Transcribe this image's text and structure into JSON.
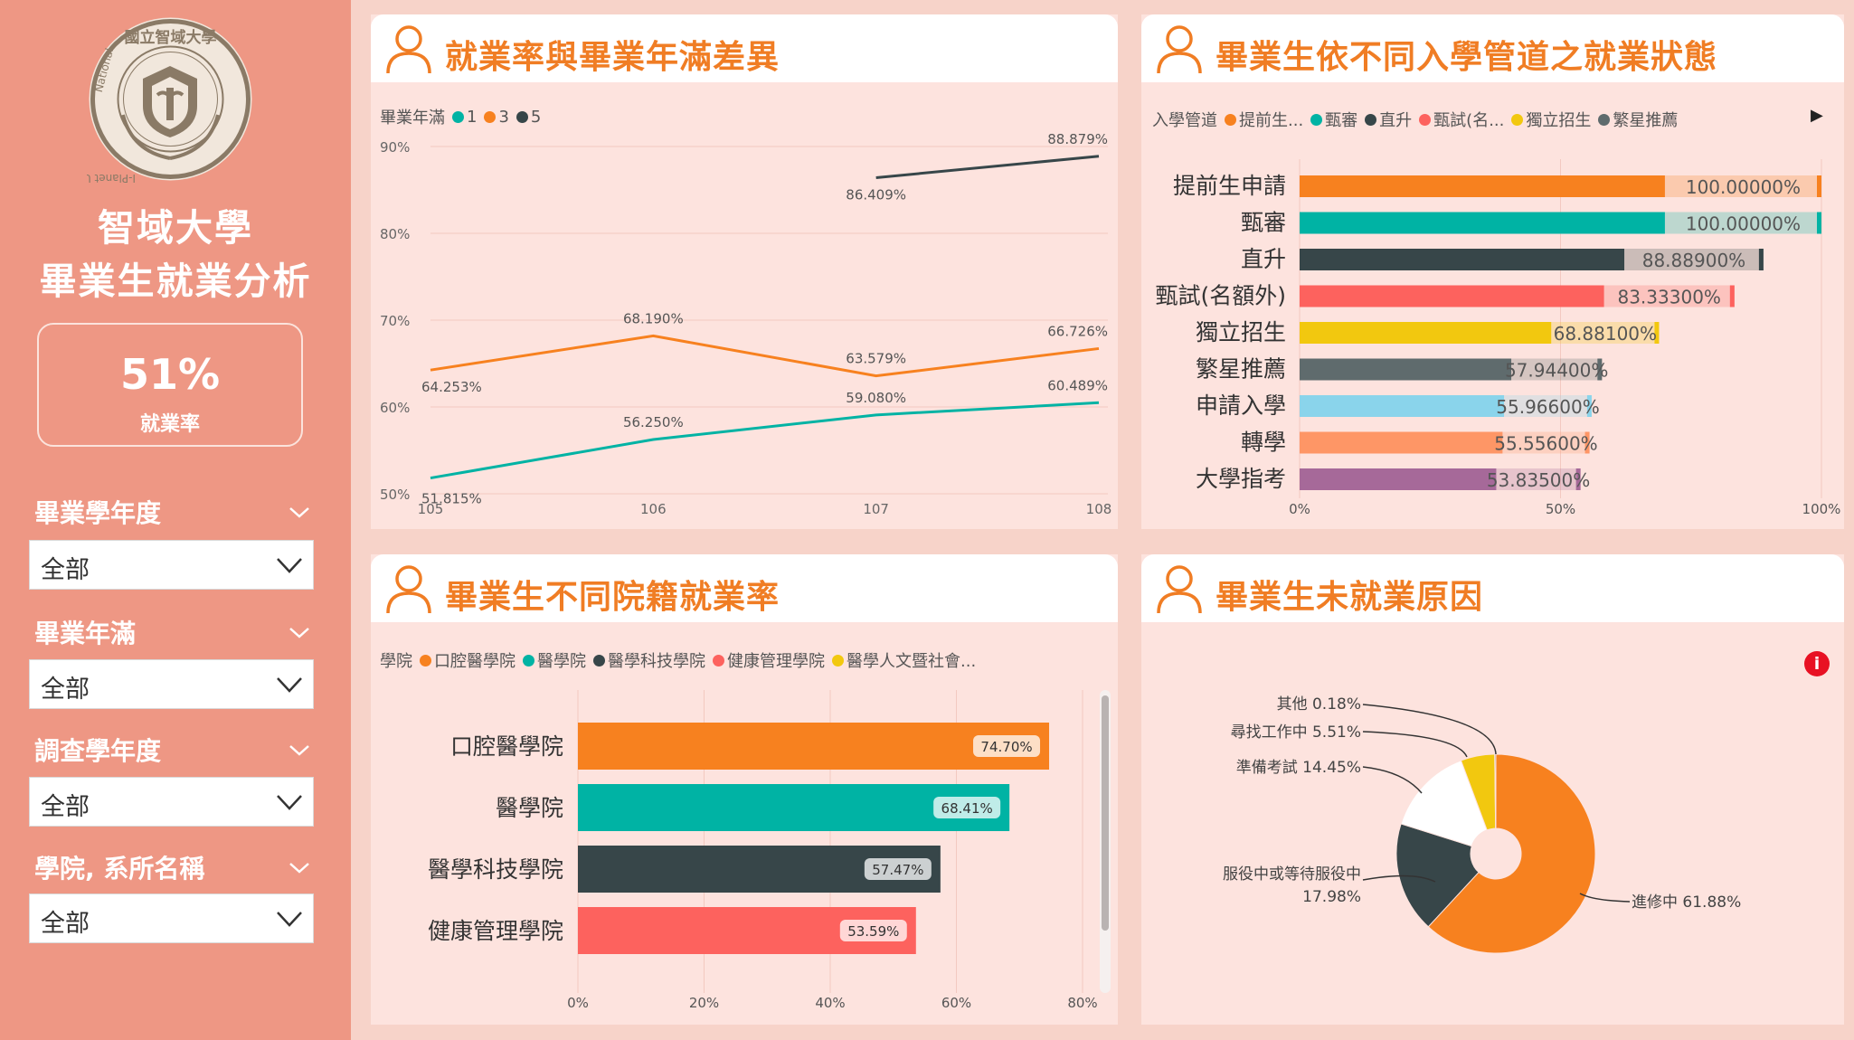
{
  "sidebar": {
    "logo": {
      "text_top": "國立智域大學",
      "text_left": "National",
      "text_right": "I-Planet University"
    },
    "title_line1": "智域大學",
    "title_line2": "畢業生就業分析",
    "kpi": {
      "value": "51%",
      "label": "就業率"
    },
    "filters": [
      {
        "label": "畢業學年度",
        "value": "全部"
      },
      {
        "label": "畢業年滿",
        "value": "全部"
      },
      {
        "label": "調查學年度",
        "value": "全部"
      },
      {
        "label": "學院, 系所名稱",
        "value": "全部"
      }
    ]
  },
  "colors": {
    "orange": "#f7811f",
    "teal": "#00b3a4",
    "dark": "#374649",
    "red": "#fd625e",
    "yellow": "#f2c80f",
    "gray": "#5f6b6d",
    "lightblue": "#8ad4eb",
    "salmon": "#fe9666",
    "purple": "#a66999"
  },
  "panels": {
    "line": {
      "title": "就業率與畢業年滿差異",
      "legend_title": "畢業年滿",
      "legend": [
        {
          "label": "1",
          "color": "#00b3a4"
        },
        {
          "label": "3",
          "color": "#f7811f"
        },
        {
          "label": "5",
          "color": "#374649"
        }
      ]
    },
    "admission": {
      "title": "畢業生依不同入學管道之就業狀態",
      "legend_title": "入學管道",
      "legend": [
        {
          "label": "提前生...",
          "color": "#f7811f"
        },
        {
          "label": "甄審",
          "color": "#00b3a4"
        },
        {
          "label": "直升",
          "color": "#374649"
        },
        {
          "label": "甄試(名...",
          "color": "#fd625e"
        },
        {
          "label": "獨立招生",
          "color": "#f2c80f"
        },
        {
          "label": "繁星推薦",
          "color": "#5f6b6d"
        }
      ],
      "legend_arrow": "▶"
    },
    "college": {
      "title": "畢業生不同院籍就業率",
      "legend_title": "學院",
      "legend": [
        {
          "label": "口腔醫學院",
          "color": "#f7811f"
        },
        {
          "label": "醫學院",
          "color": "#00b3a4"
        },
        {
          "label": "醫學科技學院",
          "color": "#374649"
        },
        {
          "label": "健康管理學院",
          "color": "#fd625e"
        },
        {
          "label": "醫學人文暨社會...",
          "color": "#f2c80f"
        }
      ]
    },
    "reasons": {
      "title": "畢業生未就業原因",
      "info_icon": "i"
    }
  },
  "chart_data": [
    {
      "type": "line",
      "x": [
        "105",
        "106",
        "107",
        "108"
      ],
      "ylim": [
        50,
        90
      ],
      "yticks": [
        "50%",
        "60%",
        "70%",
        "80%",
        "90%"
      ],
      "series": [
        {
          "name": "1",
          "color": "#00b3a4",
          "values": [
            51.815,
            56.25,
            59.08,
            60.489
          ],
          "labels": [
            "51.815%",
            "56.250%",
            "59.080%",
            "60.489%"
          ]
        },
        {
          "name": "3",
          "color": "#f7811f",
          "values": [
            64.253,
            68.19,
            63.579,
            66.726
          ],
          "labels": [
            "64.253%",
            "68.190%",
            "63.579%",
            "66.726%"
          ]
        },
        {
          "name": "5",
          "color": "#374649",
          "values": [
            null,
            null,
            86.409,
            88.879
          ],
          "labels": [
            "",
            "",
            "86.409%",
            "88.879%"
          ]
        }
      ]
    },
    {
      "type": "bar",
      "orientation": "horizontal",
      "xlim": [
        0,
        100
      ],
      "xticks": [
        "0%",
        "50%",
        "100%"
      ],
      "categories": [
        "提前生申請",
        "甄審",
        "直升",
        "甄試(名額外)",
        "獨立招生",
        "繁星推薦",
        "申請入學",
        "轉學",
        "大學指考"
      ],
      "values": [
        100.0,
        100.0,
        88.889,
        83.333,
        68.881,
        57.944,
        55.966,
        55.556,
        53.835
      ],
      "labels": [
        "100.00000%",
        "100.00000%",
        "88.88900%",
        "83.33300%",
        "68.88100%",
        "57.94400%",
        "55.96600%",
        "55.55600%",
        "53.83500%"
      ],
      "colors": [
        "#f7811f",
        "#00b3a4",
        "#374649",
        "#fd625e",
        "#f2c80f",
        "#5f6b6d",
        "#8ad4eb",
        "#fe9666",
        "#a66999"
      ]
    },
    {
      "type": "bar",
      "orientation": "horizontal",
      "xlim": [
        0,
        80
      ],
      "xticks": [
        "0%",
        "20%",
        "40%",
        "60%",
        "80%"
      ],
      "categories": [
        "口腔醫學院",
        "醫學院",
        "醫學科技學院",
        "健康管理學院"
      ],
      "values": [
        74.7,
        68.41,
        57.47,
        53.59
      ],
      "labels": [
        "74.70%",
        "68.41%",
        "57.47%",
        "53.59%"
      ],
      "colors": [
        "#f7811f",
        "#00b3a4",
        "#374649",
        "#fd625e"
      ]
    },
    {
      "type": "pie",
      "categories": [
        "進修中",
        "服役中或等待服役中",
        "準備考試",
        "尋找工作中",
        "其他"
      ],
      "values": [
        61.88,
        17.98,
        14.45,
        5.51,
        0.18
      ],
      "labels": [
        "進修中 61.88%",
        "服役中或等待服役中",
        "17.98%",
        "準備考試 14.45%",
        "尋找工作中 5.51%",
        "其他 0.18%"
      ],
      "colors": [
        "#f7811f",
        "#374649",
        "#ffffff",
        "#f2c80f",
        "#5f6b6d"
      ]
    }
  ]
}
